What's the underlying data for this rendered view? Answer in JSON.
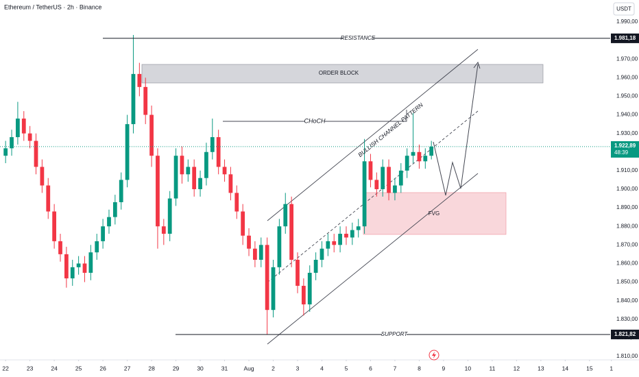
{
  "header": {
    "title": "Ethereum / TetherUS · 2h · Binance",
    "currency": "USDT"
  },
  "chart_data": {
    "type": "candlestick",
    "x": [
      0,
      0.25,
      0.5,
      0.75,
      1,
      1.25,
      1.5,
      1.75,
      2,
      2.25,
      2.5,
      2.75,
      3,
      3.25,
      3.5,
      3.75,
      4,
      4.25,
      4.5,
      4.75,
      5,
      5.25,
      5.5,
      5.75,
      6,
      6.25,
      6.5,
      6.75,
      7,
      7.25,
      7.5,
      7.75,
      8,
      8.25,
      8.5,
      8.75,
      9,
      9.25,
      9.5,
      9.75,
      10,
      10.25,
      10.5,
      10.75,
      11,
      11.25,
      11.5,
      11.75,
      12,
      12.25,
      12.5,
      12.75,
      13,
      13.25,
      13.5,
      13.75,
      14,
      14.25,
      14.5,
      14.75,
      15,
      15.25,
      15.5,
      15.75,
      16,
      16.25,
      16.5,
      16.75,
      17,
      17.25,
      17.5
    ],
    "open": [
      1918,
      1922,
      1928,
      1938,
      1930,
      1926,
      1912,
      1902,
      1888,
      1872,
      1865,
      1852,
      1858,
      1860,
      1855,
      1866,
      1872,
      1880,
      1885,
      1893,
      1905,
      1935,
      1962,
      1955,
      1940,
      1918,
      1880,
      1876,
      1895,
      1918,
      1908,
      1912,
      1900,
      1906,
      1920,
      1928,
      1912,
      1908,
      1898,
      1888,
      1875,
      1868,
      1862,
      1870,
      1835,
      1858,
      1880,
      1892,
      1862,
      1848,
      1838,
      1855,
      1862,
      1868,
      1872,
      1870,
      1876,
      1874,
      1878,
      1880,
      1915,
      1905,
      1900,
      1912,
      1898,
      1902,
      1910,
      1918,
      1920,
      1915,
      1918
    ],
    "high": [
      1926,
      1932,
      1947,
      1942,
      1934,
      1930,
      1916,
      1906,
      1892,
      1876,
      1869,
      1862,
      1864,
      1864,
      1870,
      1876,
      1884,
      1889,
      1897,
      1909,
      1940,
      1983,
      1968,
      1960,
      1945,
      1922,
      1884,
      1899,
      1922,
      1923,
      1916,
      1916,
      1910,
      1925,
      1938,
      1932,
      1916,
      1912,
      1902,
      1892,
      1879,
      1872,
      1874,
      1874,
      1862,
      1884,
      1898,
      1896,
      1866,
      1852,
      1859,
      1866,
      1872,
      1876,
      1876,
      1880,
      1880,
      1882,
      1884,
      1927,
      1919,
      1909,
      1916,
      1916,
      1906,
      1914,
      1922,
      1941,
      1924,
      1922,
      1926
    ],
    "low": [
      1914,
      1918,
      1924,
      1926,
      1922,
      1908,
      1898,
      1884,
      1868,
      1861,
      1847,
      1848,
      1854,
      1850,
      1851,
      1862,
      1868,
      1876,
      1881,
      1889,
      1901,
      1930,
      1950,
      1935,
      1912,
      1868,
      1870,
      1872,
      1891,
      1903,
      1904,
      1896,
      1896,
      1902,
      1916,
      1908,
      1904,
      1894,
      1884,
      1870,
      1864,
      1858,
      1858,
      1822,
      1831,
      1854,
      1876,
      1858,
      1844,
      1832,
      1834,
      1851,
      1858,
      1864,
      1866,
      1866,
      1870,
      1870,
      1874,
      1876,
      1901,
      1896,
      1896,
      1894,
      1894,
      1898,
      1906,
      1914,
      1911,
      1911,
      1916
    ],
    "close": [
      1922,
      1928,
      1938,
      1930,
      1926,
      1912,
      1902,
      1888,
      1872,
      1865,
      1852,
      1858,
      1860,
      1855,
      1866,
      1872,
      1880,
      1885,
      1893,
      1905,
      1935,
      1962,
      1955,
      1940,
      1918,
      1880,
      1876,
      1895,
      1918,
      1908,
      1912,
      1900,
      1906,
      1920,
      1928,
      1912,
      1908,
      1898,
      1888,
      1875,
      1868,
      1862,
      1870,
      1835,
      1858,
      1880,
      1892,
      1862,
      1848,
      1838,
      1855,
      1862,
      1868,
      1872,
      1870,
      1876,
      1874,
      1878,
      1880,
      1915,
      1905,
      1900,
      1912,
      1898,
      1902,
      1910,
      1918,
      1920,
      1915,
      1918,
      1922.89
    ],
    "up_color": "#089981",
    "down_color": "#f23645",
    "xlim": [
      -0.23,
      24.85
    ],
    "ylim": [
      1808.15,
      2001.8
    ],
    "xticks": [
      {
        "value": 0,
        "label": "22"
      },
      {
        "value": 1,
        "label": "23"
      },
      {
        "value": 2,
        "label": "24"
      },
      {
        "value": 3,
        "label": "25"
      },
      {
        "value": 4,
        "label": "26"
      },
      {
        "value": 5,
        "label": "27"
      },
      {
        "value": 6,
        "label": "28"
      },
      {
        "value": 7,
        "label": "29"
      },
      {
        "value": 8,
        "label": "30"
      },
      {
        "value": 9,
        "label": "31"
      },
      {
        "value": 10,
        "label": "Aug"
      },
      {
        "value": 11,
        "label": "2"
      },
      {
        "value": 12,
        "label": "3"
      },
      {
        "value": 13,
        "label": "4"
      },
      {
        "value": 14,
        "label": "5"
      },
      {
        "value": 15,
        "label": "6"
      },
      {
        "value": 16,
        "label": "7"
      },
      {
        "value": 17,
        "label": "8"
      },
      {
        "value": 18,
        "label": "9"
      },
      {
        "value": 19,
        "label": "10"
      },
      {
        "value": 20,
        "label": "11"
      },
      {
        "value": 21,
        "label": "12"
      },
      {
        "value": 22,
        "label": "13"
      },
      {
        "value": 23,
        "label": "14"
      },
      {
        "value": 24,
        "label": "15"
      },
      {
        "value": 24.9,
        "label": "1"
      }
    ],
    "yticks": [
      {
        "value": 1990,
        "label": "1.990,00"
      },
      {
        "value": 1980,
        "label": "1.980,00"
      },
      {
        "value": 1970,
        "label": "1.970,00"
      },
      {
        "value": 1960,
        "label": "1.960,00"
      },
      {
        "value": 1950,
        "label": "1.950,00"
      },
      {
        "value": 1940,
        "label": "1.940,00"
      },
      {
        "value": 1930,
        "label": "1.930,00"
      },
      {
        "value": 1920,
        "label": "1.920,00"
      },
      {
        "value": 1910,
        "label": "1.910,00"
      },
      {
        "value": 1900,
        "label": "1.900,00"
      },
      {
        "value": 1890,
        "label": "1.890,00"
      },
      {
        "value": 1880,
        "label": "1.880,00"
      },
      {
        "value": 1870,
        "label": "1.870,00"
      },
      {
        "value": 1860,
        "label": "1.860,00"
      },
      {
        "value": 1850,
        "label": "1.850,00"
      },
      {
        "value": 1840,
        "label": "1.840,00"
      },
      {
        "value": 1830,
        "label": "1.830,00"
      },
      {
        "value": 1820,
        "label": "1.820,00"
      },
      {
        "value": 1810,
        "label": "1.810,00"
      }
    ],
    "grid": false,
    "annotations": {
      "resistance": {
        "value": 1981.18,
        "label": "1.981,18",
        "text": "RESISTANCE"
      },
      "support": {
        "value": 1821.82,
        "label": "1.821,82",
        "text": "SUPPORT"
      },
      "last_price": {
        "value": 1922.89,
        "label": "1.922,89",
        "countdown": "48:39"
      },
      "order_block": "ORDER BLOCK",
      "choch": "CHoCH",
      "channel": "BULLISH CHANNEL PATTERN",
      "fvg": "FVG"
    }
  }
}
